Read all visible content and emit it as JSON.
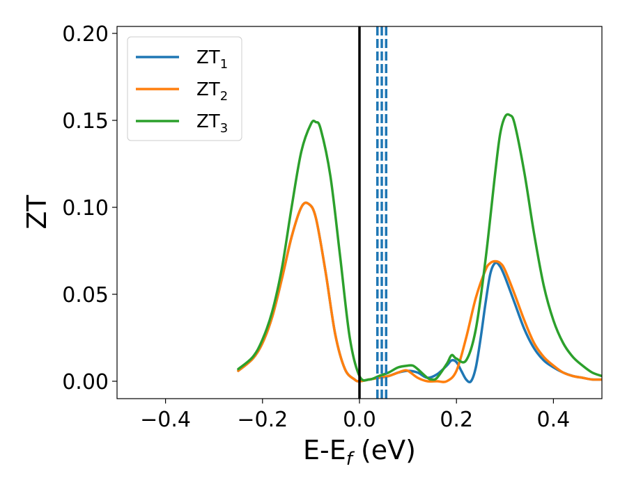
{
  "chart_data": {
    "type": "line",
    "title": "",
    "xlabel": "E-E",
    "xlabel_sub": "f",
    "xlabel_unit": " (eV)",
    "ylabel": "ZT",
    "xlim": [
      -0.5,
      0.5
    ],
    "ylim": [
      -0.01,
      0.204
    ],
    "xticks": [
      -0.4,
      -0.2,
      0.0,
      0.2,
      0.4
    ],
    "xtick_labels": [
      "−0.4",
      "−0.2",
      "0.0",
      "0.2",
      "0.4"
    ],
    "yticks": [
      0.0,
      0.05,
      0.1,
      0.15,
      0.2
    ],
    "ytick_labels": [
      "0.00",
      "0.05",
      "0.10",
      "0.15",
      "0.20"
    ],
    "grid": false,
    "legend_position": "top-left",
    "vertical_line": {
      "x": 0.0,
      "color": "#000000",
      "style": "solid"
    },
    "dashed_lines": {
      "x": [
        0.037,
        0.046,
        0.055
      ],
      "color": "#1f77b4",
      "style": "dashed"
    },
    "series": [
      {
        "name": "ZT",
        "name_sub": "1",
        "color": "#1f77b4",
        "x": [
          -0.25,
          -0.22,
          -0.2,
          -0.18,
          -0.16,
          -0.14,
          -0.12,
          -0.105,
          -0.09,
          -0.07,
          -0.05,
          -0.03,
          -0.01,
          0.0,
          0.02,
          0.04,
          0.06,
          0.08,
          0.1,
          0.12,
          0.14,
          0.16,
          0.18,
          0.19,
          0.2,
          0.21,
          0.22,
          0.23,
          0.24,
          0.25,
          0.26,
          0.27,
          0.28,
          0.29,
          0.3,
          0.32,
          0.34,
          0.36,
          0.38,
          0.4,
          0.42,
          0.44,
          0.46,
          0.48,
          0.5
        ],
        "y": [
          0.006,
          0.013,
          0.022,
          0.037,
          0.059,
          0.083,
          0.1,
          0.102,
          0.094,
          0.063,
          0.027,
          0.007,
          0.001,
          0.0,
          0.001,
          0.002,
          0.003,
          0.005,
          0.006,
          0.005,
          0.002,
          0.004,
          0.009,
          0.012,
          0.011,
          0.006,
          0.001,
          0.0,
          0.008,
          0.025,
          0.045,
          0.062,
          0.068,
          0.066,
          0.06,
          0.045,
          0.03,
          0.019,
          0.012,
          0.008,
          0.005,
          0.003,
          0.002,
          0.001,
          0.001
        ]
      },
      {
        "name": "ZT",
        "name_sub": "2",
        "color": "#ff7f0e",
        "x": [
          -0.25,
          -0.22,
          -0.2,
          -0.18,
          -0.16,
          -0.14,
          -0.12,
          -0.105,
          -0.09,
          -0.07,
          -0.05,
          -0.03,
          -0.01,
          0.0,
          0.02,
          0.04,
          0.06,
          0.08,
          0.09,
          0.1,
          0.12,
          0.14,
          0.16,
          0.18,
          0.2,
          0.22,
          0.24,
          0.26,
          0.27,
          0.28,
          0.29,
          0.3,
          0.32,
          0.34,
          0.36,
          0.38,
          0.4,
          0.42,
          0.44,
          0.46,
          0.48,
          0.5
        ],
        "y": [
          0.006,
          0.013,
          0.022,
          0.037,
          0.059,
          0.083,
          0.1,
          0.102,
          0.094,
          0.063,
          0.027,
          0.007,
          0.001,
          0.0,
          0.001,
          0.002,
          0.003,
          0.005,
          0.006,
          0.006,
          0.002,
          0.0,
          0.0,
          0.0,
          0.006,
          0.025,
          0.048,
          0.064,
          0.068,
          0.069,
          0.068,
          0.064,
          0.05,
          0.035,
          0.022,
          0.014,
          0.009,
          0.005,
          0.003,
          0.002,
          0.001,
          0.001
        ]
      },
      {
        "name": "ZT",
        "name_sub": "3",
        "color": "#2ca02c",
        "x": [
          -0.25,
          -0.22,
          -0.2,
          -0.18,
          -0.16,
          -0.14,
          -0.12,
          -0.1,
          -0.09,
          -0.08,
          -0.06,
          -0.04,
          -0.02,
          0.0,
          0.02,
          0.04,
          0.06,
          0.08,
          0.1,
          0.11,
          0.12,
          0.14,
          0.15,
          0.16,
          0.18,
          0.19,
          0.2,
          0.22,
          0.24,
          0.26,
          0.28,
          0.29,
          0.3,
          0.31,
          0.32,
          0.34,
          0.36,
          0.38,
          0.4,
          0.42,
          0.44,
          0.46,
          0.48,
          0.5
        ],
        "y": [
          0.007,
          0.014,
          0.024,
          0.04,
          0.065,
          0.1,
          0.132,
          0.148,
          0.149,
          0.145,
          0.118,
          0.072,
          0.025,
          0.003,
          0.001,
          0.003,
          0.005,
          0.008,
          0.009,
          0.009,
          0.007,
          0.002,
          0.001,
          0.002,
          0.01,
          0.015,
          0.013,
          0.012,
          0.03,
          0.07,
          0.12,
          0.142,
          0.152,
          0.153,
          0.148,
          0.12,
          0.085,
          0.055,
          0.035,
          0.022,
          0.014,
          0.009,
          0.005,
          0.003
        ]
      }
    ]
  }
}
